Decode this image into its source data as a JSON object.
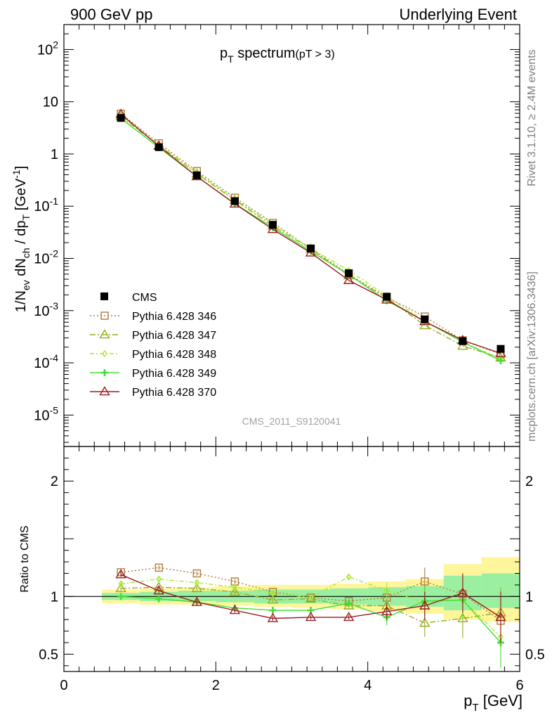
{
  "header": {
    "left": "900 GeV pp",
    "right": "Underlying Event"
  },
  "side_text": {
    "top": "Rivet 3.1.10, ≥ 2.4M events",
    "bottom": "mcplots.cern.ch [arXiv:1306.3436]"
  },
  "main_title": {
    "p": "p",
    "sub": "T",
    "rest": " spectrum",
    "cut": "(pT >  3)"
  },
  "watermark": "CMS_2011_S9120041",
  "ratio_ylabel": "Ratio to CMS",
  "xlabel_parts": {
    "p": "p",
    "sub": "T",
    "unit": " [GeV]"
  },
  "ylabel_parts": {
    "a": "1/N",
    "a_sub": "ev",
    "b": " dN",
    "b_sub": "ch",
    "c": " / dp",
    "c_sub": "T",
    "d": " [GeV",
    "d_sup": "-1",
    "e": "]"
  },
  "chart_data": {
    "type": "line",
    "xlabel": "pT [GeV]",
    "xlim": [
      0,
      6
    ],
    "x_ticks": [
      "0",
      "2",
      "4",
      "6"
    ],
    "x": [
      0.75,
      1.25,
      1.75,
      2.25,
      2.75,
      3.25,
      3.75,
      4.25,
      4.75,
      5.25,
      5.75
    ],
    "main": {
      "ylabel": "1/Nev dNch / dpT [GeV-1]",
      "ylim": [
        2.5e-06,
        300
      ],
      "log": true,
      "y_ticks": [
        {
          "v": 100,
          "label": "10",
          "exp": "2"
        },
        {
          "v": 10,
          "label": "10",
          "exp": ""
        },
        {
          "v": 1,
          "label": "1",
          "exp": ""
        },
        {
          "v": 0.1,
          "label": "10",
          "exp": "-1"
        },
        {
          "v": 0.01,
          "label": "10",
          "exp": "-2"
        },
        {
          "v": 0.001,
          "label": "10",
          "exp": "-3"
        },
        {
          "v": 0.0001,
          "label": "10",
          "exp": "-4"
        },
        {
          "v": 1e-05,
          "label": "10",
          "exp": "-5"
        }
      ]
    },
    "ratio": {
      "ylabel": "Ratio to CMS",
      "ylim": [
        0.35,
        2.3
      ],
      "y_ticks": [
        {
          "v": 0.5,
          "label": "0.5"
        },
        {
          "v": 1,
          "label": "1"
        },
        {
          "v": 2,
          "label": "2"
        }
      ],
      "band_yellow": [
        [
          0.94,
          1.06
        ],
        [
          0.93,
          1.07
        ],
        [
          0.93,
          1.08
        ],
        [
          0.92,
          1.09
        ],
        [
          0.91,
          1.1
        ],
        [
          0.9,
          1.1
        ],
        [
          0.89,
          1.11
        ],
        [
          0.87,
          1.13
        ],
        [
          0.85,
          1.15
        ],
        [
          0.8,
          1.28
        ],
        [
          0.78,
          1.34
        ]
      ],
      "band_green": [
        [
          0.97,
          1.03
        ],
        [
          0.96,
          1.04
        ],
        [
          0.96,
          1.05
        ],
        [
          0.95,
          1.05
        ],
        [
          0.94,
          1.06
        ],
        [
          0.94,
          1.06
        ],
        [
          0.93,
          1.07
        ],
        [
          0.92,
          1.08
        ],
        [
          0.91,
          1.09
        ],
        [
          0.88,
          1.18
        ],
        [
          0.9,
          1.2
        ]
      ]
    },
    "data": {
      "name": "CMS",
      "y": [
        4.9,
        1.35,
        0.39,
        0.125,
        0.044,
        0.0155,
        0.0052,
        0.00185,
        0.00068,
        0.00026,
        0.000185
      ]
    },
    "series": [
      {
        "name": "Pythia 6.428 346",
        "color": "#b07c3c",
        "dash": "2,3",
        "marker": "square",
        "y": [
          5.9,
          1.6,
          0.47,
          0.145,
          0.048,
          0.0154,
          0.005,
          0.0018,
          0.00077,
          0.00027,
          0.000145
        ],
        "ratio": [
          1.21,
          1.25,
          1.2,
          1.13,
          1.04,
          0.99,
          0.96,
          0.99,
          1.13,
          1.02,
          0.79
        ]
      },
      {
        "name": "Pythia 6.428 347",
        "color": "#9aaa20",
        "dash": "8,3,2,3",
        "marker": "triangle",
        "y": [
          5.2,
          1.45,
          0.42,
          0.13,
          0.042,
          0.0152,
          0.0047,
          0.00175,
          0.00052,
          0.00021,
          0.000125
        ],
        "ratio": [
          1.07,
          1.08,
          1.07,
          1.04,
          0.97,
          0.98,
          0.92,
          0.92,
          0.77,
          0.81,
          0.86
        ]
      },
      {
        "name": "Pythia 6.428 348",
        "color": "#a8e830",
        "dash": "6,3,2,3",
        "marker": "diamond",
        "y": [
          5.4,
          1.5,
          0.44,
          0.135,
          0.046,
          0.0155,
          0.0059,
          0.0019,
          0.00062,
          0.00025,
          0.00012
        ],
        "ratio": [
          1.11,
          1.15,
          1.12,
          1.08,
          1.03,
          0.99,
          1.17,
          1.05,
          0.95,
          0.97,
          0.65
        ]
      },
      {
        "name": "Pythia 6.428 349",
        "color": "#40e030",
        "dash": "",
        "marker": "cross",
        "y": [
          4.8,
          1.33,
          0.37,
          0.112,
          0.039,
          0.0137,
          0.0049,
          0.00155,
          0.00063,
          0.00025,
          0.00011
        ],
        "ratio": [
          1.0,
          0.98,
          0.95,
          0.9,
          0.88,
          0.88,
          0.94,
          0.82,
          0.96,
          0.97,
          0.6
        ]
      },
      {
        "name": "Pythia 6.428 370",
        "color": "#9a1a20",
        "dash": "",
        "marker": "triangle",
        "y": [
          5.8,
          1.42,
          0.37,
          0.111,
          0.036,
          0.0128,
          0.0038,
          0.00161,
          0.00062,
          0.00027,
          0.000152
        ],
        "ratio": [
          1.19,
          1.05,
          0.95,
          0.88,
          0.81,
          0.82,
          0.82,
          0.87,
          0.92,
          1.03,
          0.82
        ]
      }
    ]
  }
}
